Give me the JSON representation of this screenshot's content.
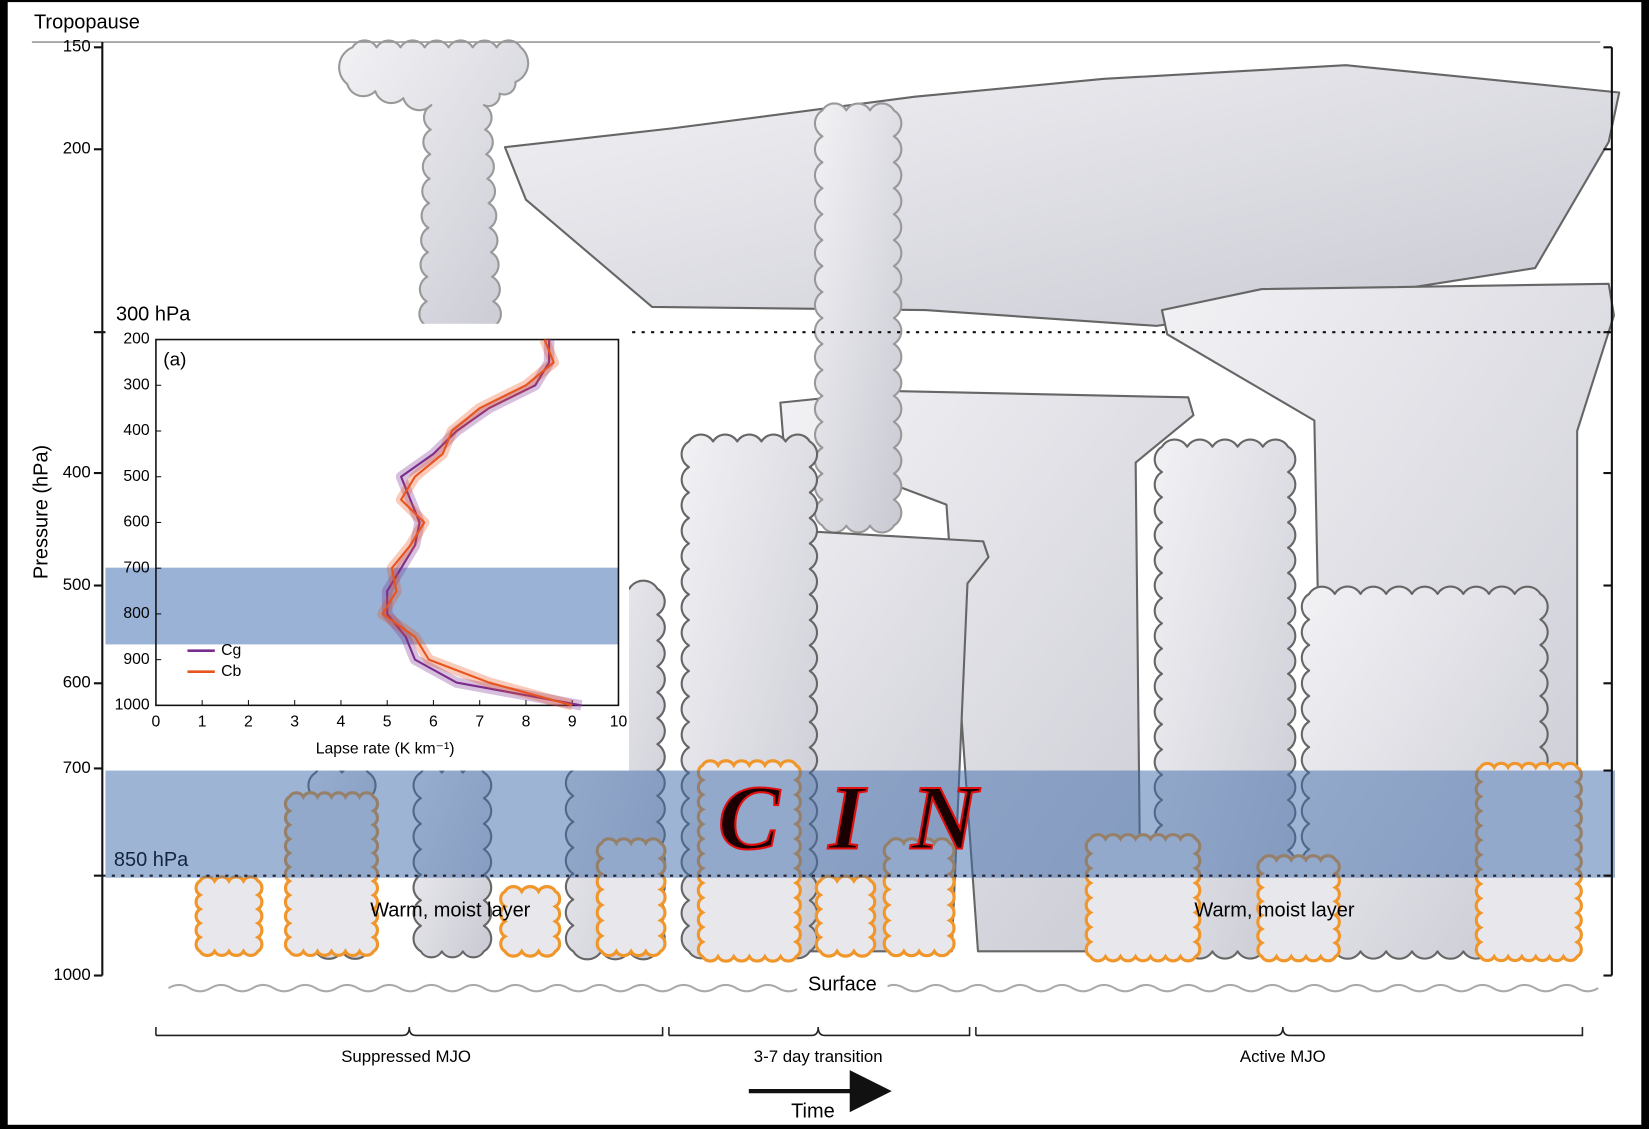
{
  "tropopause": "Tropopause",
  "pressure_axis": {
    "label": "Pressure (hPa)",
    "ticks": [
      150,
      200,
      400,
      500,
      600,
      700,
      1000
    ]
  },
  "levels": {
    "upper": "300 hPa",
    "lower": "850 hPa"
  },
  "layer_labels": [
    "Warm, moist layer",
    "Warm, moist layer"
  ],
  "cin_letters": [
    "C",
    "I",
    "N"
  ],
  "surface": "Surface",
  "phases": [
    "Suppressed MJO",
    "3-7 day transition",
    "Active MJO"
  ],
  "time": "Time",
  "chart_data": {
    "type": "line",
    "panel_label": "(a)",
    "xlabel": "Lapse rate (K km⁻¹)",
    "y": [
      200,
      250,
      300,
      350,
      400,
      450,
      500,
      550,
      600,
      650,
      700,
      750,
      800,
      850,
      900,
      950,
      1000
    ],
    "series": [
      {
        "name": "Cg",
        "color": "#7b2d8e",
        "values": [
          8.5,
          8.5,
          8.2,
          7.2,
          6.5,
          6.0,
          5.3,
          5.5,
          5.7,
          5.6,
          5.3,
          5.0,
          5.0,
          5.4,
          5.6,
          6.5,
          9.2
        ]
      },
      {
        "name": "Cb",
        "color": "#e8541e",
        "values": [
          8.4,
          8.6,
          8.0,
          7.0,
          6.4,
          6.2,
          5.6,
          5.3,
          5.8,
          5.5,
          5.1,
          5.2,
          4.9,
          5.6,
          5.9,
          7.2,
          9.0
        ]
      }
    ],
    "xlim": [
      0,
      10
    ],
    "xticks": [
      0,
      1,
      2,
      3,
      4,
      5,
      6,
      7,
      8,
      9,
      10
    ],
    "ylim": [
      1000,
      200
    ],
    "yticks": [
      200,
      300,
      400,
      500,
      600,
      700,
      800,
      900,
      1000
    ],
    "legend": "lower left"
  }
}
